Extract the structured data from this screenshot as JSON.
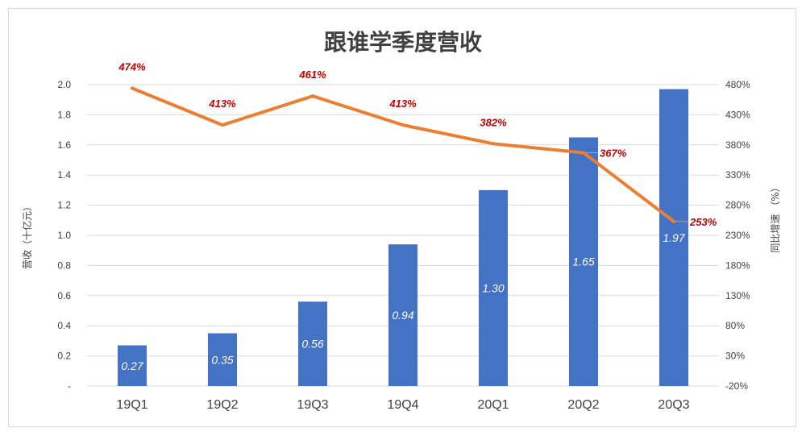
{
  "chart_data": {
    "type": "bar",
    "title": "跟谁学季度营收",
    "categories": [
      "19Q1",
      "19Q2",
      "19Q3",
      "19Q4",
      "20Q1",
      "20Q2",
      "20Q3"
    ],
    "series": [
      {
        "name": "",
        "type": "bar",
        "axis": "left",
        "values": [
          0.27,
          0.35,
          0.56,
          0.94,
          1.3,
          1.65,
          1.97
        ],
        "labels": [
          "0.27",
          "0.35",
          "0.56",
          "0.94",
          "1.30",
          "1.65",
          "1.97"
        ],
        "color": "#4472c4"
      },
      {
        "name": "",
        "type": "line",
        "axis": "right",
        "values": [
          474,
          413,
          461,
          413,
          382,
          367,
          253
        ],
        "labels": [
          "474%",
          "413%",
          "461%",
          "413%",
          "382%",
          "367%",
          "253%"
        ],
        "color": "#ed7d31"
      }
    ],
    "ylabel_left": "营收（十亿元）",
    "ylabel_right": "同比增速 （%）",
    "ylim_left": [
      0,
      2.0
    ],
    "ylim_right": [
      -20,
      480
    ],
    "yticks_left": [
      "-",
      "0.2",
      "0.4",
      "0.6",
      "0.8",
      "1.0",
      "1.2",
      "1.4",
      "1.6",
      "1.8",
      "2.0"
    ],
    "yticks_right": [
      "-20%",
      "30%",
      "80%",
      "130%",
      "180%",
      "230%",
      "280%",
      "330%",
      "380%",
      "430%",
      "480%"
    ],
    "grid": true,
    "label_color": "#c00000"
  }
}
